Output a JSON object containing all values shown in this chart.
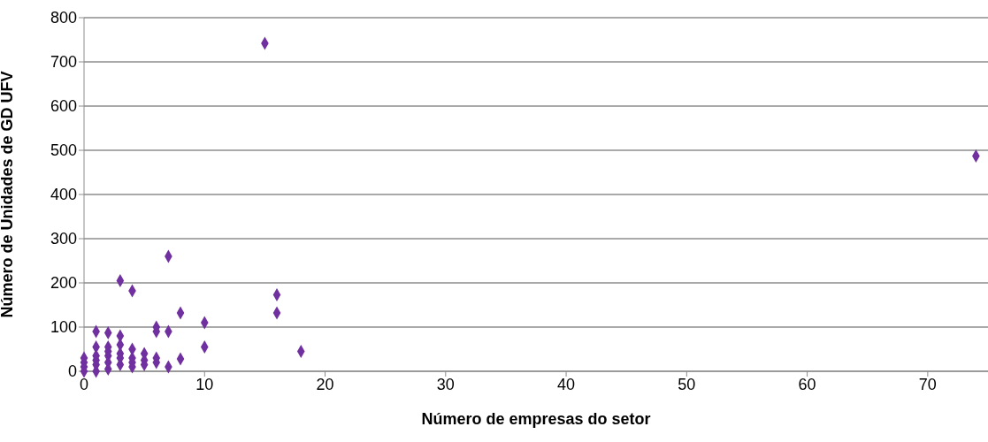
{
  "chart_data": {
    "type": "scatter",
    "xlabel": "Número de empresas do setor",
    "ylabel": "Número de Unidades de GD UFV",
    "x": [
      15,
      74,
      7,
      3,
      4,
      16,
      16,
      8,
      10,
      6,
      6,
      7,
      1,
      2,
      3,
      18,
      10,
      2,
      1,
      3,
      4,
      5,
      6,
      8,
      7,
      4,
      0,
      0,
      0,
      0,
      1,
      1,
      1,
      2,
      2,
      2,
      3,
      3,
      4,
      5,
      6,
      1,
      2,
      3,
      4,
      5
    ],
    "series": [
      {
        "color": "#7030a0",
        "values": [
          742,
          487,
          260,
          205,
          182,
          173,
          132,
          132,
          110,
          100,
          90,
          90,
          90,
          87,
          80,
          45,
          55,
          55,
          55,
          60,
          50,
          40,
          30,
          28,
          10,
          10,
          0,
          10,
          20,
          30,
          0,
          15,
          25,
          5,
          20,
          35,
          15,
          40,
          30,
          25,
          20,
          35,
          45,
          30,
          20,
          15
        ]
      }
    ],
    "xlim": [
      0,
      75
    ],
    "xticks": [
      0,
      10,
      20,
      30,
      40,
      50,
      60,
      70
    ],
    "ylim": [
      0,
      800
    ],
    "yticks": [
      0,
      100,
      200,
      300,
      400,
      500,
      600,
      700,
      800
    ],
    "grid": "y",
    "marker": "diamond",
    "legend": false
  }
}
